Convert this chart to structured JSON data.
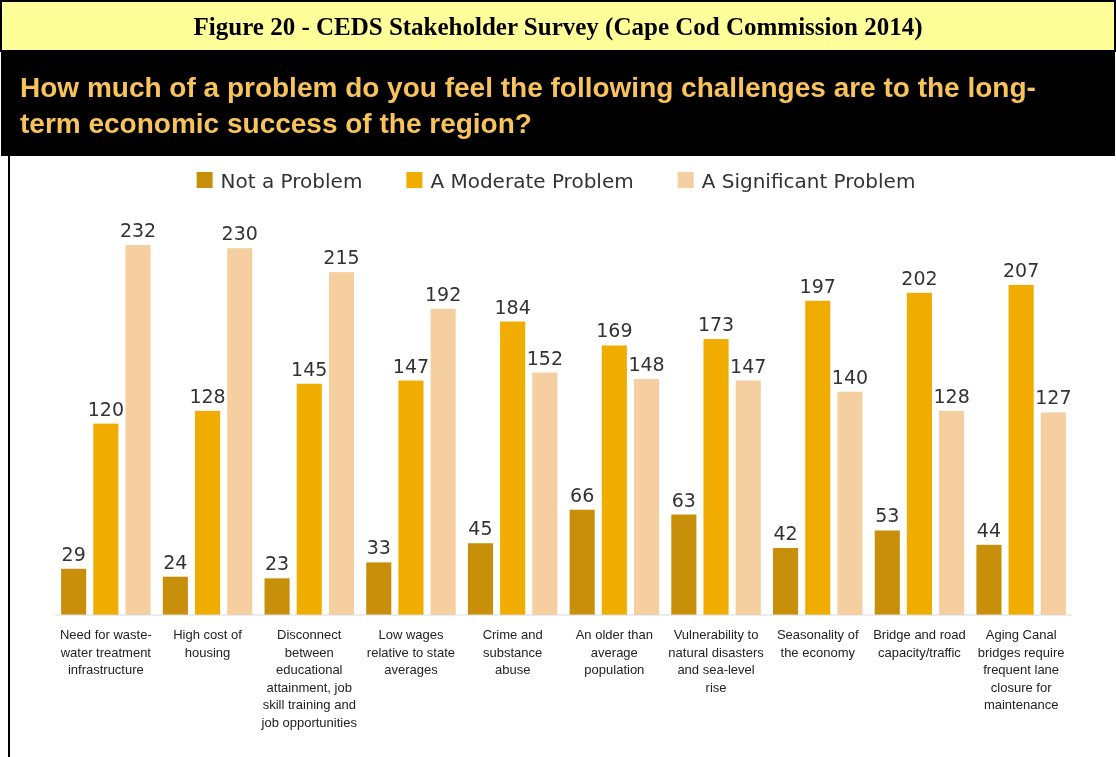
{
  "chart_data": {
    "type": "bar",
    "title": "Figure 20 - CEDS Stakeholder Survey (Cape Cod Commission 2014)",
    "subtitle": "How much of a problem do you feel the following challenges are to the long-term economic success of the region?",
    "categories": [
      "Need for waste-water treatment infrastructure",
      "High cost of housing",
      "Disconnect between educational attainment, job skill training and job opportunities",
      "Low wages relative to state averages",
      "Crime and substance abuse",
      "An older than average population",
      "Vulnerability to natural disasters and sea-level rise",
      "Seasonality of the economy",
      "Bridge and road capacity/traffic",
      "Aging Canal bridges require frequent lane closure for maintenance"
    ],
    "series": [
      {
        "name": "Not a Problem",
        "color": "#c8900a",
        "values": [
          29,
          24,
          23,
          33,
          45,
          66,
          63,
          42,
          53,
          44
        ]
      },
      {
        "name": "A Moderate Problem",
        "color": "#f0ad00",
        "values": [
          120,
          128,
          145,
          147,
          184,
          169,
          173,
          197,
          202,
          207
        ]
      },
      {
        "name": "A Significant Problem",
        "color": "#f6cfa0",
        "values": [
          232,
          230,
          215,
          192,
          152,
          148,
          147,
          140,
          128,
          127
        ]
      }
    ],
    "relative": false,
    "data_labels": true,
    "legend": "top",
    "grid": false
  }
}
